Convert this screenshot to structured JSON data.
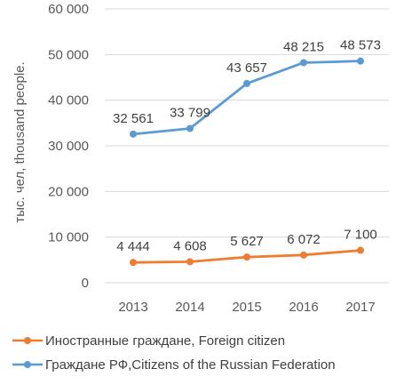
{
  "chart_data": {
    "type": "line",
    "title": "",
    "xlabel": "",
    "ylabel": "тыс. чел, thousand people.",
    "x": [
      "2013",
      "2014",
      "2015",
      "2016",
      "2017"
    ],
    "ylim": [
      0,
      60000
    ],
    "yticks": [
      0,
      10000,
      20000,
      30000,
      40000,
      50000,
      60000
    ],
    "ytick_labels": [
      "0",
      "10 000",
      "20 000",
      "30 000",
      "40 000",
      "50 000",
      "60 000"
    ],
    "grid": true,
    "legend_position": "bottom",
    "series": [
      {
        "name": "Иностранные граждане, Foreign citizen",
        "color": "#ED7D31",
        "values": [
          4444,
          4608,
          5627,
          6072,
          7100
        ],
        "labels": [
          "4 444",
          "4 608",
          "5 627",
          "6 072",
          "7 100"
        ]
      },
      {
        "name": "Граждане РФ,Citizens of the Russian Federation",
        "color": "#5B9BD5",
        "values": [
          32561,
          33799,
          43657,
          48215,
          48573
        ],
        "labels": [
          "32 561",
          "33 799",
          "43 657",
          "48 215",
          "48 573"
        ]
      }
    ]
  }
}
